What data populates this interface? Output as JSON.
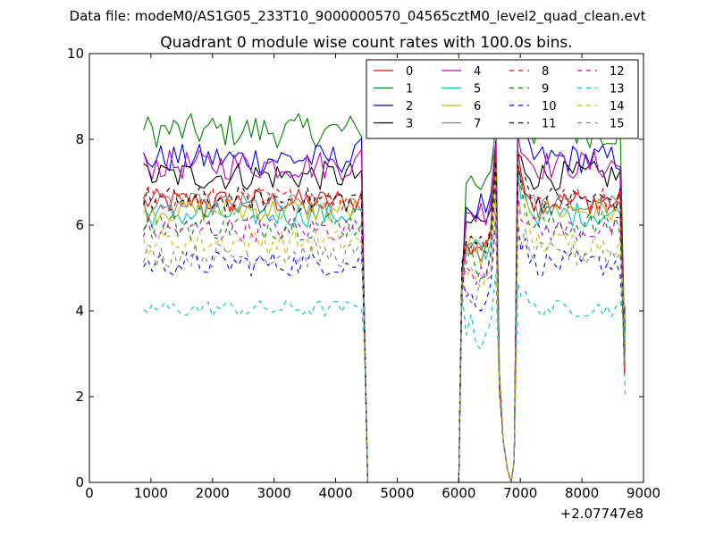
{
  "chart_data": {
    "type": "line",
    "suptitle": "Data file: modeM0/AS1G05_233T10_9000000570_04565cztM0_level2_quad_clean.evt",
    "title": "Quadrant 0 module wise count rates with 100.0s bins.",
    "xlabel": "",
    "ylabel": "",
    "x_offset_label": "+2.07747e8",
    "xlim": [
      0,
      9000
    ],
    "ylim": [
      0,
      10
    ],
    "xticks": [
      0,
      1000,
      2000,
      3000,
      4000,
      5000,
      6000,
      7000,
      8000,
      9000
    ],
    "yticks": [
      0,
      2,
      4,
      6,
      8,
      10
    ],
    "legend_location": "top-right",
    "legend_columns": 4,
    "gap_x": [
      4500,
      6000
    ],
    "series": [
      {
        "name": "0",
        "color": "#ff0000",
        "dash": "solid",
        "base": 6.55,
        "noise": 0.3,
        "burst2": 1.3,
        "burst3": 1.2
      },
      {
        "name": "1",
        "color": "#008000",
        "dash": "solid",
        "base": 8.2,
        "noise": 0.4,
        "burst2": 0.1,
        "burst3": 0.7
      },
      {
        "name": "2",
        "color": "#0000ff",
        "dash": "solid",
        "base": 7.55,
        "noise": 0.35,
        "burst2": 0.4,
        "burst3": 0.8
      },
      {
        "name": "3",
        "color": "#000000",
        "dash": "solid",
        "base": 7.15,
        "noise": 0.35,
        "burst2": 0.8,
        "burst3": 0.5
      },
      {
        "name": "4",
        "color": "#bf00bf",
        "dash": "solid",
        "base": 7.4,
        "noise": 0.35,
        "burst2": 0.5,
        "burst3": 0.7
      },
      {
        "name": "5",
        "color": "#00bfbf",
        "dash": "solid",
        "base": 6.25,
        "noise": 0.3,
        "burst2": 1.3,
        "burst3": 1.0
      },
      {
        "name": "6",
        "color": "#bfbf00",
        "dash": "solid",
        "base": 6.35,
        "noise": 0.3,
        "burst2": 1.0,
        "burst3": 1.0
      },
      {
        "name": "7",
        "color": "#808080",
        "dash": "solid",
        "base": 6.45,
        "noise": 0.3,
        "burst2": 2.8,
        "burst3": 1.0
      },
      {
        "name": "8",
        "color": "#ff0000",
        "dash": "dashed",
        "base": 6.6,
        "noise": 0.3,
        "burst2": 1.0,
        "burst3": 0.8
      },
      {
        "name": "9",
        "color": "#008000",
        "dash": "dashed",
        "base": 6.0,
        "noise": 0.35,
        "burst2": 1.2,
        "burst3": 1.0
      },
      {
        "name": "10",
        "color": "#0000ff",
        "dash": "dashed",
        "base": 5.1,
        "noise": 0.3,
        "burst2": 1.0,
        "burst3": 0.9
      },
      {
        "name": "11",
        "color": "#000000",
        "dash": "dashed",
        "base": 6.6,
        "noise": 0.3,
        "burst2": 0.9,
        "burst3": 0.8
      },
      {
        "name": "12",
        "color": "#bf00bf",
        "dash": "dashed",
        "base": 5.9,
        "noise": 0.3,
        "burst2": 1.0,
        "burst3": 0.8
      },
      {
        "name": "13",
        "color": "#00bfbf",
        "dash": "dashed",
        "base": 4.05,
        "noise": 0.2,
        "burst2": 0.8,
        "burst3": 0.6
      },
      {
        "name": "14",
        "color": "#bfbf00",
        "dash": "dashed",
        "base": 5.6,
        "noise": 0.3,
        "burst2": 1.0,
        "burst3": 0.9
      },
      {
        "name": "15",
        "color": "#808080",
        "dash": "dashed",
        "base": 5.3,
        "noise": 0.3,
        "burst2": 1.0,
        "burst3": 0.8
      }
    ]
  }
}
